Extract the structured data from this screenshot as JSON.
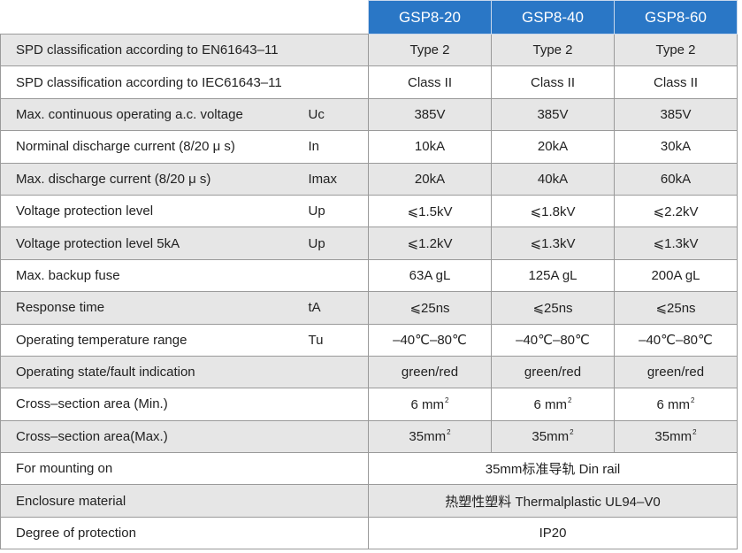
{
  "headers": [
    "GSP8-20",
    "GSP8-40",
    "GSP8-60"
  ],
  "rows": [
    {
      "param": "SPD classification according to EN61643–11",
      "symbol": "",
      "values": [
        "Type 2",
        "Type 2",
        "Type 2"
      ]
    },
    {
      "param": "SPD classification according to IEC61643–11",
      "symbol": "",
      "values": [
        "Class II",
        "Class II",
        "Class II"
      ]
    },
    {
      "param": "Max. continuous operating a.c. voltage",
      "symbol": "Uc",
      "values": [
        "385V",
        "385V",
        "385V"
      ]
    },
    {
      "param": "Norminal  discharge current (8/20 μ s)",
      "symbol": "In",
      "values": [
        "10kA",
        "20kA",
        "30kA"
      ]
    },
    {
      "param": "Max. discharge current (8/20 μ s)",
      "symbol": "Imax",
      "values": [
        "20kA",
        "40kA",
        "60kA"
      ]
    },
    {
      "param": "Voltage  protection level",
      "symbol": "Up",
      "values": [
        "⩽1.5kV",
        "⩽1.8kV",
        "⩽2.2kV"
      ]
    },
    {
      "param": "Voltage  protection level 5kA",
      "symbol": "Up",
      "values": [
        "⩽1.2kV",
        "⩽1.3kV",
        "⩽1.3kV"
      ]
    },
    {
      "param": "Max. backup fuse",
      "symbol": "",
      "values": [
        "63A gL",
        "125A gL",
        "200A gL"
      ]
    },
    {
      "param": "Response  time",
      "symbol": "tA",
      "values": [
        "⩽25ns",
        "⩽25ns",
        "⩽25ns"
      ]
    },
    {
      "param": "Operating  temperature range",
      "symbol": "Tu",
      "values": [
        "–40℃–80℃",
        "–40℃–80℃",
        "–40℃–80℃"
      ]
    },
    {
      "param": "Operating state/fault indication",
      "symbol": "",
      "values": [
        "green/red",
        "green/red",
        "green/red"
      ]
    },
    {
      "param": "Cross–section area (Min.)",
      "symbol": "",
      "values": [
        "6 mm",
        "6 mm",
        "6 mm"
      ],
      "sup": "2"
    },
    {
      "param": "Cross–section area(Max.)",
      "symbol": "",
      "values": [
        "35mm",
        "35mm",
        "35mm"
      ],
      "sup": "2"
    }
  ],
  "span_rows": [
    {
      "param": "For mounting on",
      "value": "35mm标准导轨  Din rail"
    },
    {
      "param": "Enclosure material",
      "value": "热塑性塑料 Thermalplastic  UL94–V0"
    },
    {
      "param": "Degree of protection",
      "value": "IP20"
    }
  ]
}
